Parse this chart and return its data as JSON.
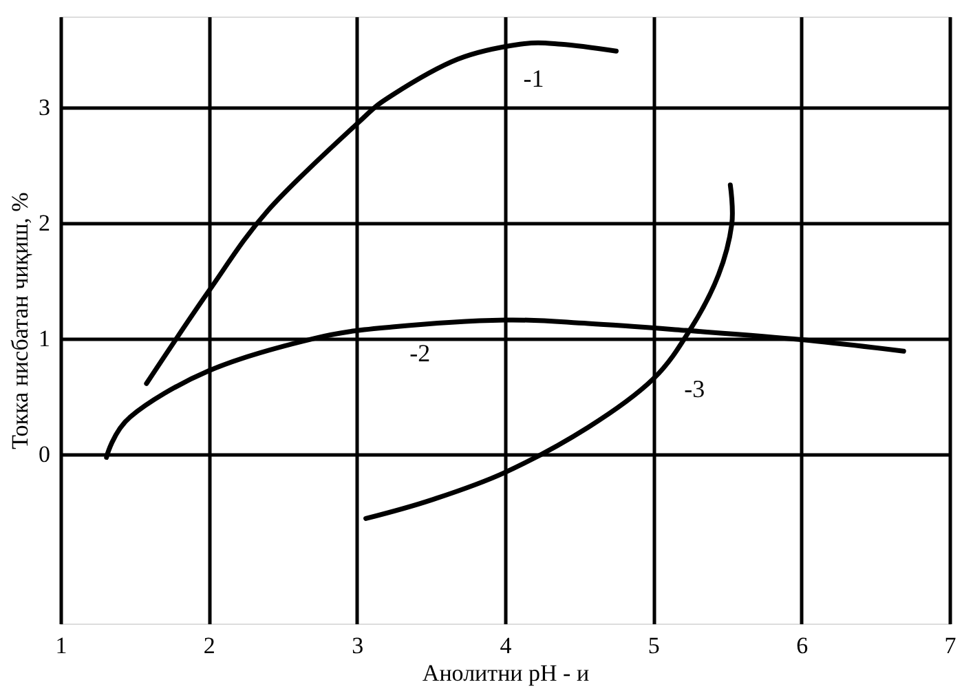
{
  "chart_data": {
    "type": "line",
    "xlabel": "Анолитни pH  -  и",
    "ylabel": "Токка нисбатан чиқиш, %",
    "xlim": [
      1,
      7
    ],
    "xticks": [
      1,
      2,
      3,
      4,
      5,
      6,
      7
    ],
    "ylim": [
      -1.47,
      3.79
    ],
    "yticks": [
      0,
      1,
      2,
      3
    ],
    "grid": true,
    "marker": "none",
    "line_style": "solid",
    "series": [
      {
        "name": "-1",
        "color": "#000000",
        "x": [
          1.58,
          2.0,
          2.4,
          3.0,
          3.24,
          3.68,
          4.1,
          4.38,
          4.75
        ],
        "values": [
          0.61,
          1.41,
          2.11,
          2.86,
          3.11,
          3.42,
          3.55,
          3.55,
          3.49
        ]
      },
      {
        "name": "-2",
        "color": "#000000",
        "x": [
          1.31,
          1.47,
          2.0,
          2.71,
          3.24,
          4.0,
          4.56,
          5.22,
          6.0,
          6.69
        ],
        "values": [
          -0.03,
          0.32,
          0.72,
          1.0,
          1.1,
          1.16,
          1.13,
          1.07,
          0.99,
          0.89
        ]
      },
      {
        "name": "-3",
        "color": "#000000",
        "x": [
          3.06,
          3.5,
          4.0,
          4.56,
          5.0,
          5.26,
          5.44,
          5.53,
          5.52
        ],
        "values": [
          -0.56,
          -0.4,
          -0.16,
          0.23,
          0.65,
          1.1,
          1.55,
          1.99,
          2.33
        ]
      }
    ]
  }
}
